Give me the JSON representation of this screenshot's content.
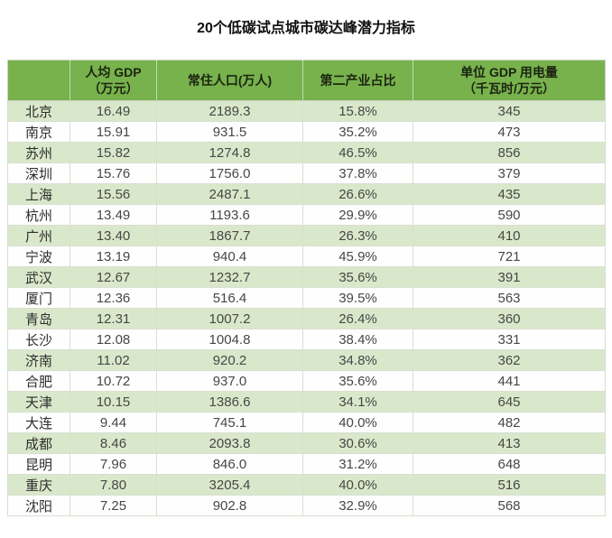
{
  "title": "20个低碳试点城市碳达峰潜力指标",
  "colors": {
    "header_green": "#77b24c",
    "row_tint_green": "#d9e8ca",
    "row_white": "#fefefe",
    "header_text": "#1c2411",
    "body_text": "#474747"
  },
  "table": {
    "columns": [
      {
        "label": "",
        "unit": ""
      },
      {
        "label": "人均 GDP",
        "unit": "（万元）"
      },
      {
        "label": "常住人口(万人)",
        "unit": ""
      },
      {
        "label": "第二产业占比",
        "unit": ""
      },
      {
        "label": "单位 GDP 用电量",
        "unit": "（千瓦时/万元）"
      }
    ],
    "rows": [
      {
        "city": "北京",
        "gdp_per_capita": "16.49",
        "population": "2189.3",
        "secondary_industry_share": "15.8%",
        "electricity_per_gdp": "345"
      },
      {
        "city": "南京",
        "gdp_per_capita": "15.91",
        "population": "931.5",
        "secondary_industry_share": "35.2%",
        "electricity_per_gdp": "473"
      },
      {
        "city": "苏州",
        "gdp_per_capita": "15.82",
        "population": "1274.8",
        "secondary_industry_share": "46.5%",
        "electricity_per_gdp": "856"
      },
      {
        "city": "深圳",
        "gdp_per_capita": "15.76",
        "population": "1756.0",
        "secondary_industry_share": "37.8%",
        "electricity_per_gdp": "379"
      },
      {
        "city": "上海",
        "gdp_per_capita": "15.56",
        "population": "2487.1",
        "secondary_industry_share": "26.6%",
        "electricity_per_gdp": "435"
      },
      {
        "city": "杭州",
        "gdp_per_capita": "13.49",
        "population": "1193.6",
        "secondary_industry_share": "29.9%",
        "electricity_per_gdp": "590"
      },
      {
        "city": "广州",
        "gdp_per_capita": "13.40",
        "population": "1867.7",
        "secondary_industry_share": "26.3%",
        "electricity_per_gdp": "410"
      },
      {
        "city": "宁波",
        "gdp_per_capita": "13.19",
        "population": "940.4",
        "secondary_industry_share": "45.9%",
        "electricity_per_gdp": "721"
      },
      {
        "city": "武汉",
        "gdp_per_capita": "12.67",
        "population": "1232.7",
        "secondary_industry_share": "35.6%",
        "electricity_per_gdp": "391"
      },
      {
        "city": "厦门",
        "gdp_per_capita": "12.36",
        "population": "516.4",
        "secondary_industry_share": "39.5%",
        "electricity_per_gdp": "563"
      },
      {
        "city": "青岛",
        "gdp_per_capita": "12.31",
        "population": "1007.2",
        "secondary_industry_share": "26.4%",
        "electricity_per_gdp": "360"
      },
      {
        "city": "长沙",
        "gdp_per_capita": "12.08",
        "population": "1004.8",
        "secondary_industry_share": "38.4%",
        "electricity_per_gdp": "331"
      },
      {
        "city": "济南",
        "gdp_per_capita": "11.02",
        "population": "920.2",
        "secondary_industry_share": "34.8%",
        "electricity_per_gdp": "362"
      },
      {
        "city": "合肥",
        "gdp_per_capita": "10.72",
        "population": "937.0",
        "secondary_industry_share": "35.6%",
        "electricity_per_gdp": "441"
      },
      {
        "city": "天津",
        "gdp_per_capita": "10.15",
        "population": "1386.6",
        "secondary_industry_share": "34.1%",
        "electricity_per_gdp": "645"
      },
      {
        "city": "大连",
        "gdp_per_capita": "9.44",
        "population": "745.1",
        "secondary_industry_share": "40.0%",
        "electricity_per_gdp": "482"
      },
      {
        "city": "成都",
        "gdp_per_capita": "8.46",
        "population": "2093.8",
        "secondary_industry_share": "30.6%",
        "electricity_per_gdp": "413"
      },
      {
        "city": "昆明",
        "gdp_per_capita": "7.96",
        "population": "846.0",
        "secondary_industry_share": "31.2%",
        "electricity_per_gdp": "648"
      },
      {
        "city": "重庆",
        "gdp_per_capita": "7.80",
        "population": "3205.4",
        "secondary_industry_share": "40.0%",
        "electricity_per_gdp": "516"
      },
      {
        "city": "沈阳",
        "gdp_per_capita": "7.25",
        "population": "902.8",
        "secondary_industry_share": "32.9%",
        "electricity_per_gdp": "568"
      }
    ]
  },
  "chart_data": {
    "type": "table",
    "title": "20个低碳试点城市碳达峰潜力指标",
    "columns": [
      "",
      "人均 GDP（万元）",
      "常住人口(万人)",
      "第二产业占比",
      "单位 GDP 用电量（千瓦时/万元）"
    ],
    "rows": [
      [
        "北京",
        "16.49",
        "2189.3",
        "15.8%",
        "345"
      ],
      [
        "南京",
        "15.91",
        "931.5",
        "35.2%",
        "473"
      ],
      [
        "苏州",
        "15.82",
        "1274.8",
        "46.5%",
        "856"
      ],
      [
        "深圳",
        "15.76",
        "1756.0",
        "37.8%",
        "379"
      ],
      [
        "上海",
        "15.56",
        "2487.1",
        "26.6%",
        "435"
      ],
      [
        "杭州",
        "13.49",
        "1193.6",
        "29.9%",
        "590"
      ],
      [
        "广州",
        "13.40",
        "1867.7",
        "26.3%",
        "410"
      ],
      [
        "宁波",
        "13.19",
        "940.4",
        "45.9%",
        "721"
      ],
      [
        "武汉",
        "12.67",
        "1232.7",
        "35.6%",
        "391"
      ],
      [
        "厦门",
        "12.36",
        "516.4",
        "39.5%",
        "563"
      ],
      [
        "青岛",
        "12.31",
        "1007.2",
        "26.4%",
        "360"
      ],
      [
        "长沙",
        "12.08",
        "1004.8",
        "38.4%",
        "331"
      ],
      [
        "济南",
        "11.02",
        "920.2",
        "34.8%",
        "362"
      ],
      [
        "合肥",
        "10.72",
        "937.0",
        "35.6%",
        "441"
      ],
      [
        "天津",
        "10.15",
        "1386.6",
        "34.1%",
        "645"
      ],
      [
        "大连",
        "9.44",
        "745.1",
        "40.0%",
        "482"
      ],
      [
        "成都",
        "8.46",
        "2093.8",
        "30.6%",
        "413"
      ],
      [
        "昆明",
        "7.96",
        "846.0",
        "31.2%",
        "648"
      ],
      [
        "重庆",
        "7.80",
        "3205.4",
        "40.0%",
        "516"
      ],
      [
        "沈阳",
        "7.25",
        "902.8",
        "32.9%",
        "568"
      ]
    ]
  }
}
